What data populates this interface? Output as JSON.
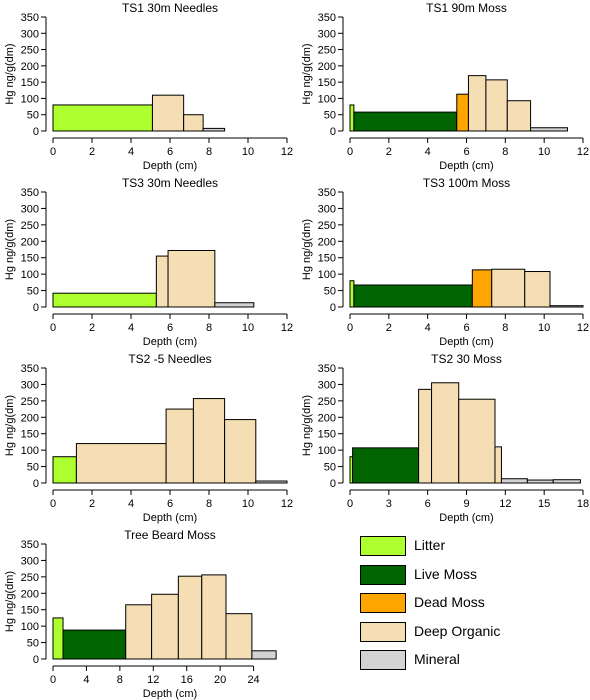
{
  "colors": {
    "Litter": "#adff2f",
    "Live Moss": "#006400",
    "Dead Moss": "#ffa500",
    "Deep Organic": "#f5deb3",
    "Mineral": "#d3d3d3"
  },
  "legend": {
    "items": [
      "Litter",
      "Live Moss",
      "Dead Moss",
      "Deep Organic",
      "Mineral"
    ]
  },
  "chart_data": [
    {
      "type": "bar",
      "title": "TS1 30m Needles",
      "xlabel": "Depth (cm)",
      "ylabel": "Hg ng/g(dm)",
      "xlim": [
        0,
        12
      ],
      "ylim": [
        0,
        350
      ],
      "xticks": [
        0,
        2,
        4,
        6,
        8,
        10,
        12
      ],
      "yticks": [
        0,
        50,
        100,
        150,
        200,
        250,
        300,
        350
      ],
      "bars": [
        {
          "x0": 0,
          "x1": 5.1,
          "value": 80,
          "layer": "Litter"
        },
        {
          "x0": 5.1,
          "x1": 6.7,
          "value": 110,
          "layer": "Deep Organic"
        },
        {
          "x0": 6.7,
          "x1": 7.7,
          "value": 50,
          "layer": "Deep Organic"
        },
        {
          "x0": 7.7,
          "x1": 8.8,
          "value": 8,
          "layer": "Mineral"
        }
      ]
    },
    {
      "type": "bar",
      "title": "TS1 90m Moss",
      "xlabel": "Depth (cm)",
      "ylabel": "Hg ng/g(dm)",
      "xlim": [
        0,
        12
      ],
      "ylim": [
        0,
        350
      ],
      "xticks": [
        0,
        2,
        4,
        6,
        8,
        10,
        12
      ],
      "yticks": [
        0,
        50,
        100,
        150,
        200,
        250,
        300,
        350
      ],
      "bars": [
        {
          "x0": 0,
          "x1": 0.2,
          "value": 80,
          "layer": "Litter"
        },
        {
          "x0": 0.2,
          "x1": 5.5,
          "value": 58,
          "layer": "Live Moss"
        },
        {
          "x0": 5.5,
          "x1": 6.1,
          "value": 113,
          "layer": "Dead Moss"
        },
        {
          "x0": 6.1,
          "x1": 7.0,
          "value": 170,
          "layer": "Deep Organic"
        },
        {
          "x0": 7.0,
          "x1": 8.1,
          "value": 157,
          "layer": "Deep Organic"
        },
        {
          "x0": 8.1,
          "x1": 9.3,
          "value": 93,
          "layer": "Deep Organic"
        },
        {
          "x0": 9.3,
          "x1": 11.2,
          "value": 10,
          "layer": "Mineral"
        }
      ]
    },
    {
      "type": "bar",
      "title": "TS3 30m Needles",
      "xlabel": "Depth (cm)",
      "ylabel": "Hg ng/g(dm)",
      "xlim": [
        0,
        12
      ],
      "ylim": [
        0,
        350
      ],
      "xticks": [
        0,
        2,
        4,
        6,
        8,
        10,
        12
      ],
      "yticks": [
        0,
        50,
        100,
        150,
        200,
        250,
        300,
        350
      ],
      "bars": [
        {
          "x0": 0,
          "x1": 5.3,
          "value": 42,
          "layer": "Litter"
        },
        {
          "x0": 5.3,
          "x1": 5.9,
          "value": 155,
          "layer": "Deep Organic"
        },
        {
          "x0": 5.9,
          "x1": 8.3,
          "value": 172,
          "layer": "Deep Organic"
        },
        {
          "x0": 8.3,
          "x1": 10.3,
          "value": 13,
          "layer": "Mineral"
        }
      ]
    },
    {
      "type": "bar",
      "title": "TS3 100m Moss",
      "xlabel": "Depth (cm)",
      "ylabel": "Hg ng/g(dm)",
      "xlim": [
        0,
        12
      ],
      "ylim": [
        0,
        350
      ],
      "xticks": [
        0,
        2,
        4,
        6,
        8,
        10,
        12
      ],
      "yticks": [
        0,
        50,
        100,
        150,
        200,
        250,
        300,
        350
      ],
      "bars": [
        {
          "x0": 0,
          "x1": 0.2,
          "value": 80,
          "layer": "Litter"
        },
        {
          "x0": 0.2,
          "x1": 6.3,
          "value": 67,
          "layer": "Live Moss"
        },
        {
          "x0": 6.3,
          "x1": 7.3,
          "value": 113,
          "layer": "Dead Moss"
        },
        {
          "x0": 7.3,
          "x1": 9.0,
          "value": 115,
          "layer": "Deep Organic"
        },
        {
          "x0": 9.0,
          "x1": 10.3,
          "value": 108,
          "layer": "Deep Organic"
        },
        {
          "x0": 10.3,
          "x1": 12.0,
          "value": 4,
          "layer": "Mineral"
        }
      ]
    },
    {
      "type": "bar",
      "title": "TS2 -5 Needles",
      "xlabel": "Depth (cm)",
      "ylabel": "Hg ng/g(dm)",
      "xlim": [
        0,
        12
      ],
      "ylim": [
        0,
        350
      ],
      "xticks": [
        0,
        2,
        4,
        6,
        8,
        10,
        12
      ],
      "yticks": [
        0,
        50,
        100,
        150,
        200,
        250,
        300,
        350
      ],
      "bars": [
        {
          "x0": 0,
          "x1": 1.2,
          "value": 80,
          "layer": "Litter"
        },
        {
          "x0": 1.2,
          "x1": 5.8,
          "value": 120,
          "layer": "Deep Organic"
        },
        {
          "x0": 5.8,
          "x1": 7.2,
          "value": 225,
          "layer": "Deep Organic"
        },
        {
          "x0": 7.2,
          "x1": 8.8,
          "value": 257,
          "layer": "Deep Organic"
        },
        {
          "x0": 8.8,
          "x1": 10.4,
          "value": 193,
          "layer": "Deep Organic"
        },
        {
          "x0": 10.4,
          "x1": 12.0,
          "value": 6,
          "layer": "Mineral"
        }
      ]
    },
    {
      "type": "bar",
      "title": "TS2 30 Moss",
      "xlabel": "Depth (cm)",
      "ylabel": "Hg ng/g(dm)",
      "xlim": [
        0,
        18
      ],
      "ylim": [
        0,
        350
      ],
      "xticks": [
        0,
        3,
        6,
        9,
        12,
        15,
        18
      ],
      "yticks": [
        0,
        50,
        100,
        150,
        200,
        250,
        300,
        350
      ],
      "bars": [
        {
          "x0": 0,
          "x1": 0.2,
          "value": 80,
          "layer": "Litter"
        },
        {
          "x0": 0.2,
          "x1": 5.3,
          "value": 107,
          "layer": "Live Moss"
        },
        {
          "x0": 5.3,
          "x1": 6.3,
          "value": 285,
          "layer": "Deep Organic"
        },
        {
          "x0": 6.3,
          "x1": 8.4,
          "value": 305,
          "layer": "Deep Organic"
        },
        {
          "x0": 8.4,
          "x1": 11.2,
          "value": 255,
          "layer": "Deep Organic"
        },
        {
          "x0": 11.2,
          "x1": 11.7,
          "value": 110,
          "layer": "Deep Organic"
        },
        {
          "x0": 11.7,
          "x1": 13.7,
          "value": 13,
          "layer": "Mineral"
        },
        {
          "x0": 13.7,
          "x1": 15.7,
          "value": 9,
          "layer": "Mineral"
        },
        {
          "x0": 15.7,
          "x1": 17.8,
          "value": 10,
          "layer": "Mineral"
        }
      ]
    },
    {
      "type": "bar",
      "title": "Tree Beard Moss",
      "xlabel": "Depth (cm)",
      "ylabel": "Hg ng/g(dm)",
      "xlim": [
        0,
        28
      ],
      "ylim": [
        0,
        350
      ],
      "xticks": [
        0,
        4,
        8,
        12,
        16,
        20,
        24
      ],
      "yticks": [
        0,
        50,
        100,
        150,
        200,
        250,
        300,
        350
      ],
      "bars": [
        {
          "x0": 0,
          "x1": 1.2,
          "value": 125,
          "layer": "Litter"
        },
        {
          "x0": 1.2,
          "x1": 8.7,
          "value": 88,
          "layer": "Live Moss"
        },
        {
          "x0": 8.7,
          "x1": 11.8,
          "value": 165,
          "layer": "Deep Organic"
        },
        {
          "x0": 11.8,
          "x1": 15.0,
          "value": 197,
          "layer": "Deep Organic"
        },
        {
          "x0": 15.0,
          "x1": 17.8,
          "value": 252,
          "layer": "Deep Organic"
        },
        {
          "x0": 17.8,
          "x1": 20.7,
          "value": 256,
          "layer": "Deep Organic"
        },
        {
          "x0": 20.7,
          "x1": 23.8,
          "value": 138,
          "layer": "Deep Organic"
        },
        {
          "x0": 23.8,
          "x1": 26.7,
          "value": 25,
          "layer": "Mineral"
        }
      ]
    }
  ]
}
